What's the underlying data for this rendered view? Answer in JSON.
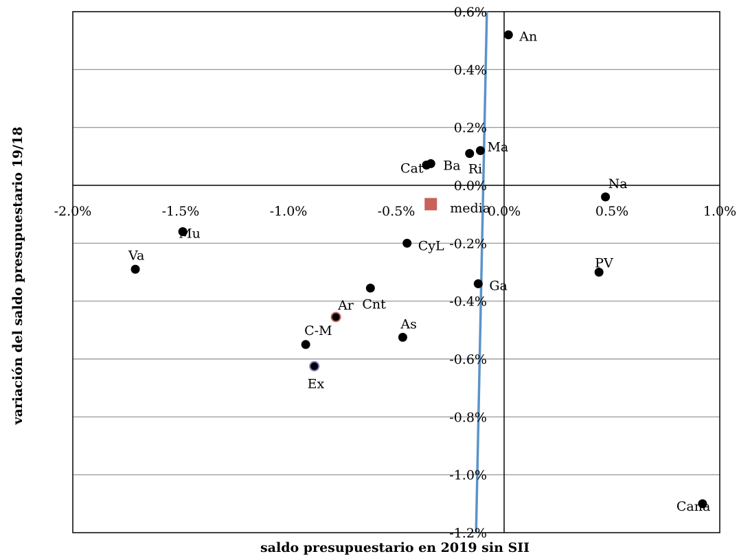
{
  "chart_data": {
    "type": "scatter",
    "xlabel": "saldo presupuestario en 2019 sin SII",
    "ylabel": "variación del saldo presupuestario 19/18",
    "xlim": [
      -2.0,
      1.0
    ],
    "ylim": [
      -1.2,
      0.6
    ],
    "x_ticks": [
      -2.0,
      -1.5,
      -1.0,
      -0.5,
      0.0,
      0.5,
      1.0
    ],
    "x_tick_labels": [
      "-2.0%",
      "-1.5%",
      "-1.0%",
      "-0.5%",
      "0.0%",
      "0.5%",
      "1.0%"
    ],
    "y_ticks": [
      0.6,
      0.4,
      0.2,
      0.0,
      -0.2,
      -0.4,
      -0.6,
      -0.8,
      -1.0,
      -1.2
    ],
    "y_tick_labels": [
      "0.6%",
      "0.4%",
      "0.2%",
      "0.0%",
      "-0.2%",
      "-0.4%",
      "-0.6%",
      "-0.8%",
      "-1.0%",
      "-1.2%"
    ],
    "grid": "horizontal",
    "legend": "none",
    "points": [
      {
        "label": "An",
        "x": 0.02,
        "y": 0.52,
        "marker": "circle",
        "color": "#000000"
      },
      {
        "label": "Ma",
        "x": -0.11,
        "y": 0.12,
        "marker": "circle",
        "color": "#000000"
      },
      {
        "label": "Ri",
        "x": -0.16,
        "y": 0.11,
        "marker": "circle",
        "color": "#000000"
      },
      {
        "label": "Ba",
        "x": -0.34,
        "y": 0.075,
        "marker": "circle",
        "color": "#000000"
      },
      {
        "label": "Cat",
        "x": -0.36,
        "y": 0.07,
        "marker": "circle",
        "color": "#000000"
      },
      {
        "label": "Na",
        "x": 0.47,
        "y": -0.04,
        "marker": "circle",
        "color": "#000000"
      },
      {
        "label": "media",
        "x": -0.34,
        "y": -0.065,
        "marker": "square",
        "color": "#c8615a"
      },
      {
        "label": "Mu",
        "x": -1.49,
        "y": -0.16,
        "marker": "circle",
        "color": "#000000"
      },
      {
        "label": "CyL",
        "x": -0.45,
        "y": -0.2,
        "marker": "circle",
        "color": "#000000"
      },
      {
        "label": "Va",
        "x": -1.71,
        "y": -0.29,
        "marker": "circle",
        "color": "#000000"
      },
      {
        "label": "PV",
        "x": 0.44,
        "y": -0.3,
        "marker": "circle",
        "color": "#000000"
      },
      {
        "label": "Ga",
        "x": -0.12,
        "y": -0.34,
        "marker": "circle",
        "color": "#000000"
      },
      {
        "label": "Cnt",
        "x": -0.62,
        "y": -0.355,
        "marker": "circle",
        "color": "#000000"
      },
      {
        "label": "Ar",
        "x": -0.78,
        "y": -0.455,
        "marker": "circle",
        "color": "#000000",
        "outline": "#c8615a"
      },
      {
        "label": "As",
        "x": -0.47,
        "y": -0.525,
        "marker": "circle",
        "color": "#000000"
      },
      {
        "label": "C-M",
        "x": -0.92,
        "y": -0.55,
        "marker": "circle",
        "color": "#000000"
      },
      {
        "label": "Ex",
        "x": -0.88,
        "y": -0.625,
        "marker": "circle",
        "color": "#000000",
        "outline": "#8a7ab5"
      },
      {
        "label": "Cana",
        "x": 0.92,
        "y": -1.1,
        "marker": "circle",
        "color": "#000000"
      }
    ],
    "trend_line": {
      "color": "#5b93c8",
      "from": [
        -0.08,
        0.6
      ],
      "to": [
        -0.13,
        -1.2
      ]
    }
  }
}
